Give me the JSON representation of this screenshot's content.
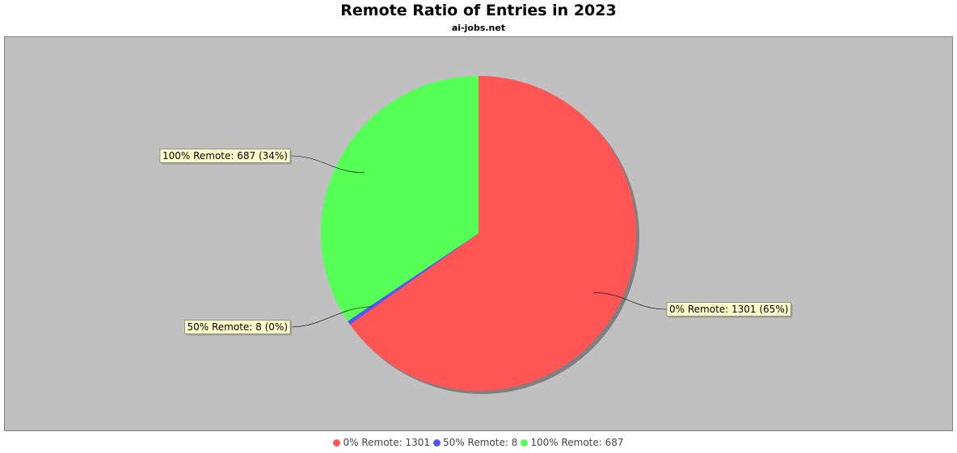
{
  "chart_data": {
    "type": "pie",
    "title": "Remote Ratio of Entries in 2023",
    "subtitle": "ai-jobs.net",
    "slices": [
      {
        "name": "0% Remote",
        "value": 1301,
        "percent_label": "65%",
        "color": "#ff5555",
        "label": "0% Remote: 1301 (65%)",
        "legend": "0% Remote: 1301"
      },
      {
        "name": "50% Remote",
        "value": 8,
        "percent_label": "0%",
        "color": "#5555ff",
        "label": "50% Remote: 8 (0%)",
        "legend": "50% Remote: 8"
      },
      {
        "name": "100% Remote",
        "value": 687,
        "percent_label": "34%",
        "color": "#55ff55",
        "label": "100% Remote: 687 (34%)",
        "legend": "100% Remote: 687"
      }
    ],
    "start_angle_deg": 90,
    "direction": "clockwise",
    "background_color": "#c0c0c0",
    "label_box_color": "#ffffcc",
    "legend_position": "bottom"
  }
}
